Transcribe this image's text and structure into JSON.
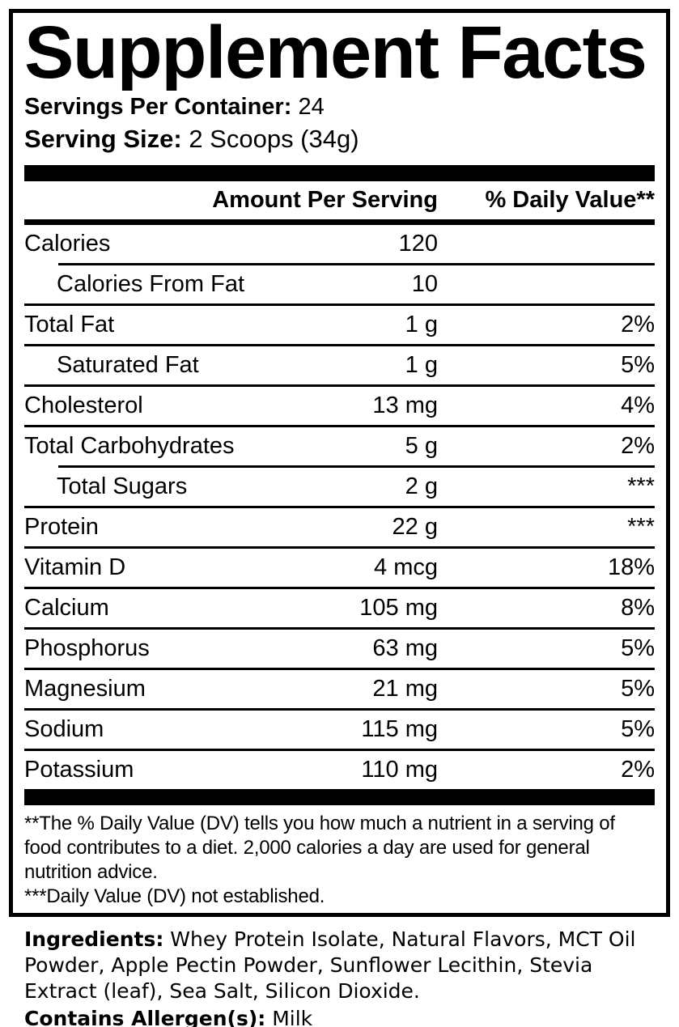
{
  "colors": {
    "ink": "#000000",
    "paper": "#ffffff"
  },
  "label": {
    "title": "Supplement Facts",
    "servings_per_container": {
      "label": "Servings Per Container:",
      "value": "24"
    },
    "serving_size": {
      "label": "Serving Size:",
      "value": "2 Scoops (34g)"
    },
    "columns": {
      "amount": "Amount Per Serving",
      "daily_value": "% Daily Value**"
    },
    "rows": [
      {
        "name": "Calories",
        "amount": "120",
        "dv": "",
        "indent": false,
        "sep_indent": false
      },
      {
        "name": "Calories From Fat",
        "amount": "10",
        "dv": "",
        "indent": true,
        "sep_indent": true
      },
      {
        "name": "Total Fat",
        "amount": "1 g",
        "dv": "2%",
        "indent": false,
        "sep_indent": false
      },
      {
        "name": "Saturated Fat",
        "amount": "1 g",
        "dv": "5%",
        "indent": true,
        "sep_indent": false
      },
      {
        "name": "Cholesterol",
        "amount": "13 mg",
        "dv": "4%",
        "indent": false,
        "sep_indent": false
      },
      {
        "name": "Total Carbohydrates",
        "amount": "5 g",
        "dv": "2%",
        "indent": false,
        "sep_indent": false
      },
      {
        "name": "Total Sugars",
        "amount": "2 g",
        "dv": "***",
        "indent": true,
        "sep_indent": true
      },
      {
        "name": "Protein",
        "amount": "22 g",
        "dv": "***",
        "indent": false,
        "sep_indent": false
      },
      {
        "name": "Vitamin D",
        "amount": "4 mcg",
        "dv": "18%",
        "indent": false,
        "sep_indent": false
      },
      {
        "name": "Calcium",
        "amount": "105 mg",
        "dv": "8%",
        "indent": false,
        "sep_indent": false
      },
      {
        "name": "Phosphorus",
        "amount": "63 mg",
        "dv": "5%",
        "indent": false,
        "sep_indent": false
      },
      {
        "name": "Magnesium",
        "amount": "21 mg",
        "dv": "5%",
        "indent": false,
        "sep_indent": false
      },
      {
        "name": "Sodium",
        "amount": "115 mg",
        "dv": "5%",
        "indent": false,
        "sep_indent": false
      },
      {
        "name": "Potassium",
        "amount": "110 mg",
        "dv": "2%",
        "indent": false,
        "sep_indent": false
      }
    ],
    "footnotes": {
      "daily_value_note": "**The % Daily Value (DV) tells you how much a nutrient in a serving of food contributes to a diet. 2,000 calories a day are used for general nutrition advice.",
      "not_established_note": "***Daily Value (DV) not established."
    }
  },
  "ingredients": {
    "label": "Ingredients:",
    "value": "Whey Protein Isolate, Natural Flavors, MCT Oil Powder, Apple Pectin Powder, Sunflower Lecithin, Stevia Extract (leaf), Sea Salt, Silicon Dioxide.",
    "allergen_label": "Contains Allergen(s):",
    "allergen_value": "Milk"
  }
}
